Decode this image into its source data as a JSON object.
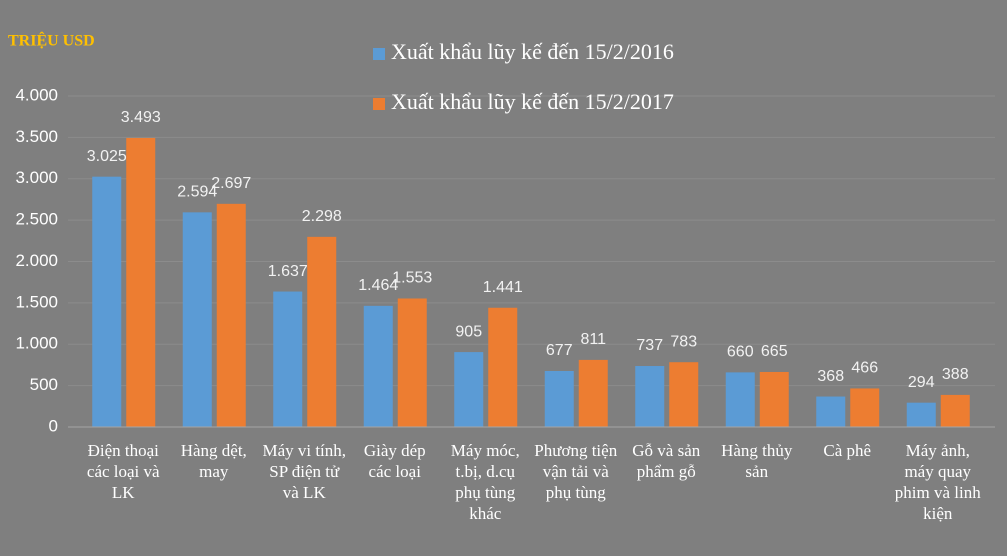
{
  "chart_data": {
    "type": "bar",
    "y_axis_label": "TRIỆU USD",
    "categories": [
      "Điện thoại các loại và LK",
      "Hàng dệt, may",
      "Máy vi tính, SP điện tử và LK",
      "Giày dép các loại",
      "Máy móc, t.bị, d.cụ phụ tùng khác",
      "Phương tiện vận tải và phụ tùng",
      "Gỗ và sản phẩm gỗ",
      "Hàng thủy sản",
      "Cà phê",
      "Máy ảnh, máy quay phim và linh kiện"
    ],
    "series": [
      {
        "name": "Xuất khẩu lũy kế đến 15/2/2016",
        "color": "#5b9bd5",
        "values": [
          3025,
          2594,
          1637,
          1464,
          905,
          677,
          737,
          660,
          368,
          294
        ],
        "value_labels": [
          "3.025",
          "2.594",
          "1.637",
          "1.464",
          "905",
          "677",
          "737",
          "660",
          "368",
          "294"
        ]
      },
      {
        "name": "Xuất khẩu lũy kế đến 15/2/2017",
        "color": "#ed7d31",
        "values": [
          3493,
          2697,
          2298,
          1553,
          1441,
          811,
          783,
          665,
          466,
          388
        ],
        "value_labels": [
          "3.493",
          "2.697",
          "2.298",
          "1.553",
          "1.441",
          "811",
          "783",
          "665",
          "466",
          "388"
        ]
      }
    ],
    "ylim": [
      0,
      4000
    ],
    "yticks": [
      0,
      500,
      {
        "value": 1000,
        "label": "1.000"
      },
      {
        "value": 1500,
        "label": "1.500"
      },
      {
        "value": 2000,
        "label": "2.000"
      },
      {
        "value": 2500,
        "label": "2.500"
      },
      {
        "value": 3000,
        "label": "3.000"
      },
      {
        "value": 3500,
        "label": "3.500"
      },
      {
        "value": 4000,
        "label": "4.000"
      }
    ],
    "grid": true
  }
}
